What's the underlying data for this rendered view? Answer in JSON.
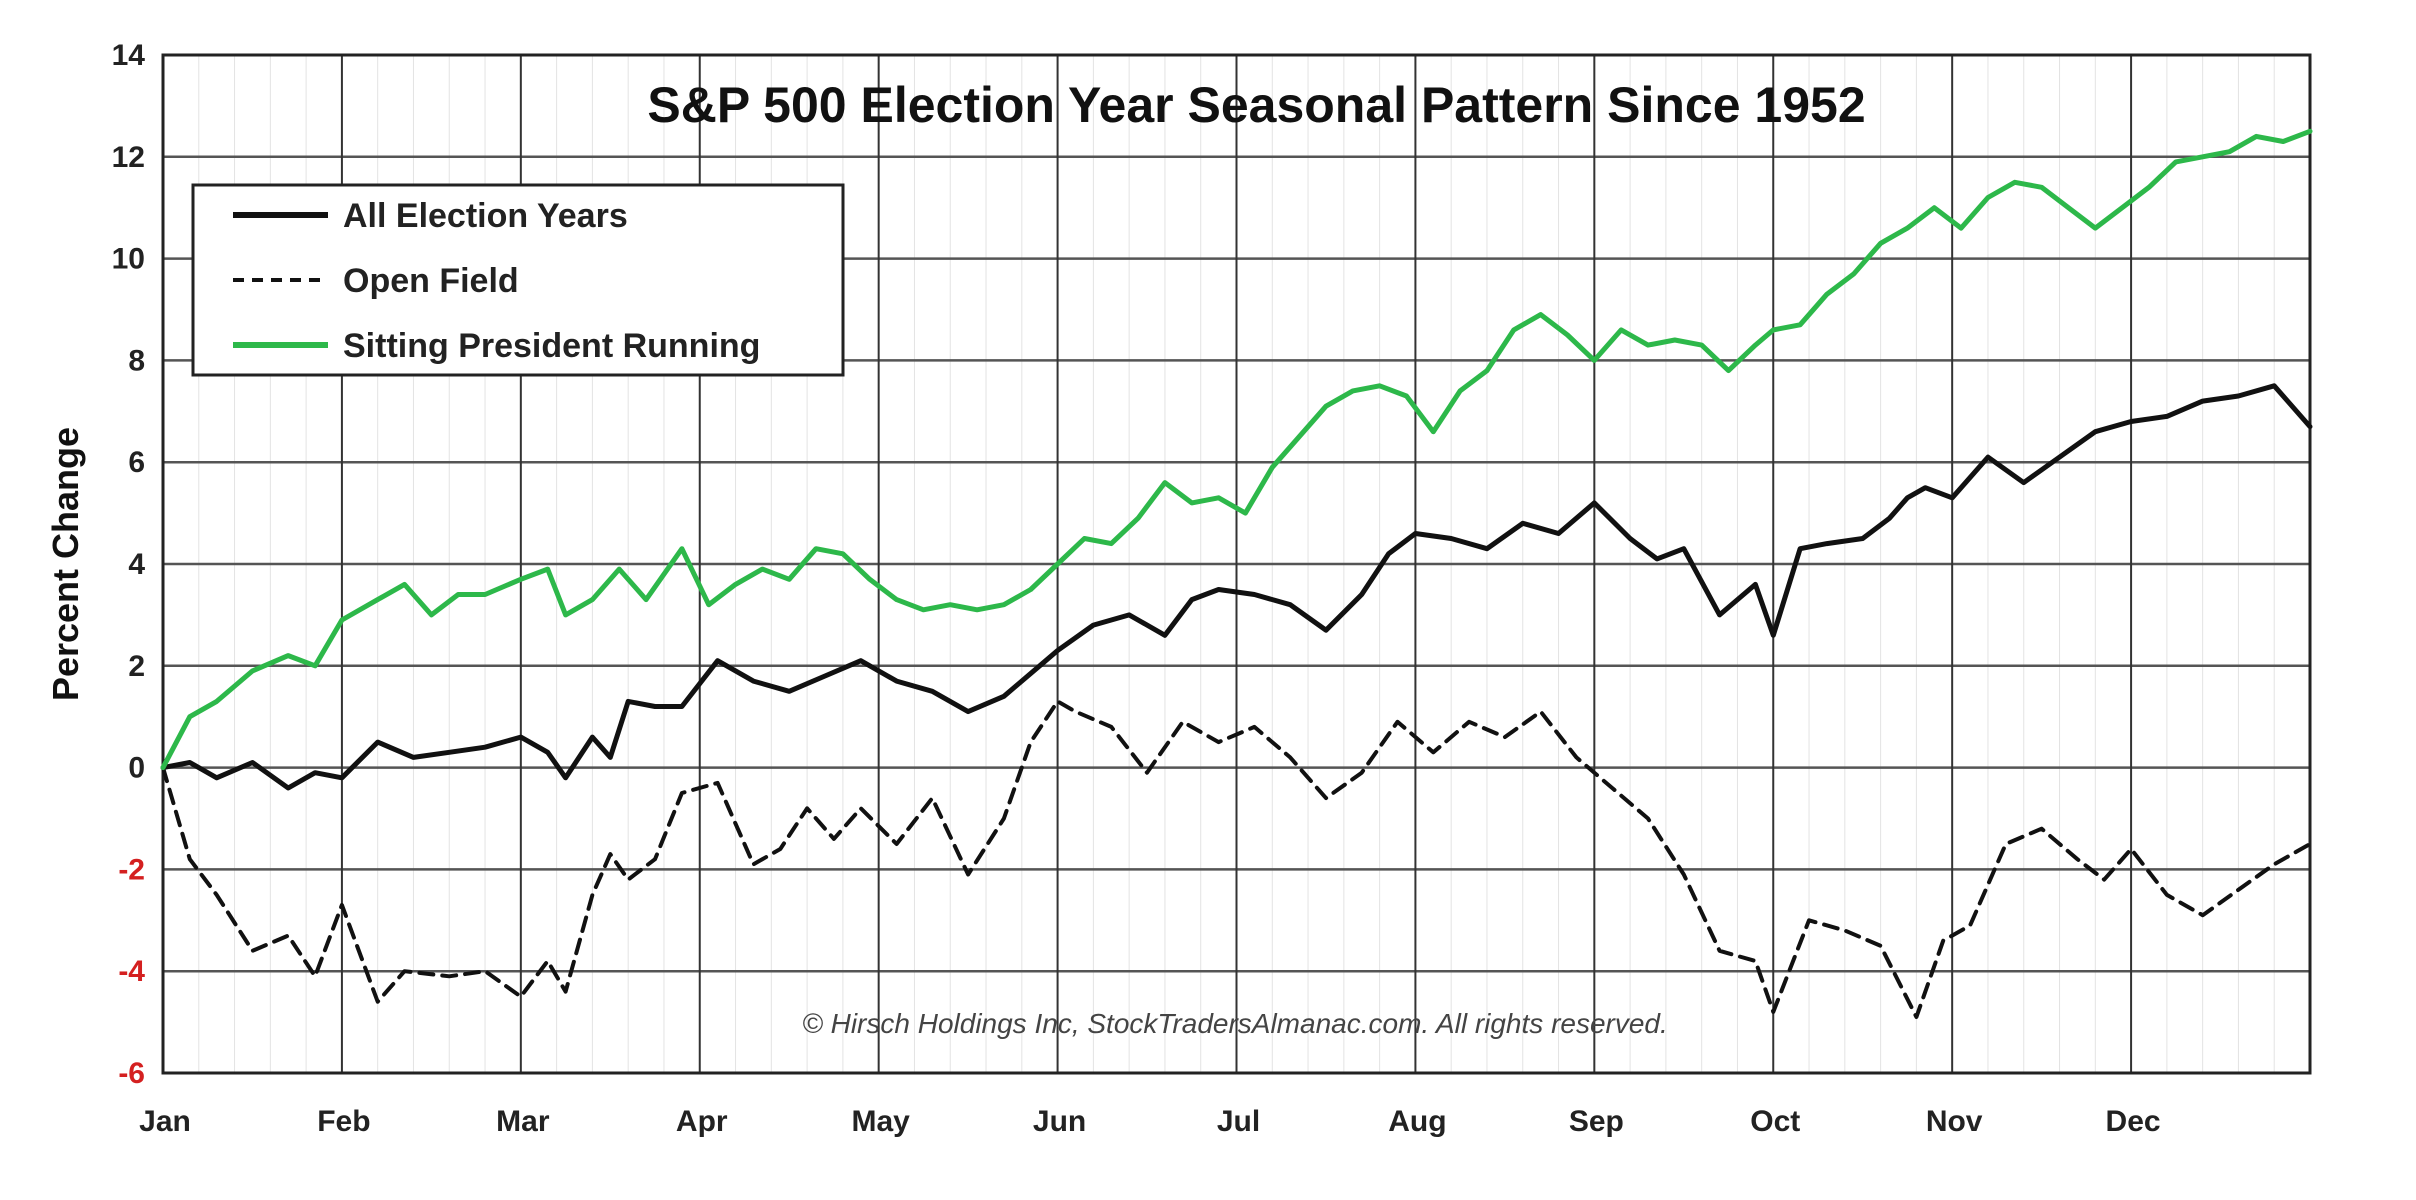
{
  "chart_data": {
    "type": "line",
    "title": "S&P 500 Election Year Seasonal Pattern Since 1952",
    "ylabel": "Percent Change",
    "xlabel": "",
    "months": [
      "Jan",
      "Feb",
      "Mar",
      "Apr",
      "May",
      "Jun",
      "Jul",
      "Aug",
      "Sep",
      "Oct",
      "Nov",
      "Dec"
    ],
    "yticks": [
      "14",
      "12",
      "10",
      "8",
      "6",
      "4",
      "2",
      "0",
      "-2",
      "-4",
      "-6"
    ],
    "ylim": [
      -6,
      14
    ],
    "xlim": [
      0,
      12
    ],
    "grid": true,
    "legend_position": "top-left",
    "credit": "© Hirsch Holdings Inc, StockTradersAlmanac.com. All rights reserved.",
    "series": [
      {
        "name": "All Election Years",
        "color": "#111111",
        "style": "solid",
        "x": [
          0,
          0.15,
          0.3,
          0.5,
          0.7,
          0.85,
          1.0,
          1.2,
          1.4,
          1.6,
          1.8,
          2.0,
          2.15,
          2.25,
          2.4,
          2.5,
          2.6,
          2.75,
          2.9,
          3.1,
          3.3,
          3.5,
          3.7,
          3.9,
          4.1,
          4.3,
          4.5,
          4.7,
          4.9,
          5.0,
          5.2,
          5.4,
          5.6,
          5.75,
          5.9,
          6.1,
          6.3,
          6.5,
          6.7,
          6.85,
          7.0,
          7.2,
          7.4,
          7.6,
          7.8,
          8.0,
          8.2,
          8.35,
          8.5,
          8.7,
          8.9,
          9.0,
          9.15,
          9.3,
          9.5,
          9.65,
          9.75,
          9.85,
          10.0,
          10.2,
          10.4,
          10.6,
          10.8,
          11.0,
          11.2,
          11.4,
          11.6,
          11.8,
          12.0
        ],
        "y": [
          0,
          0.1,
          -0.2,
          0.1,
          -0.4,
          -0.1,
          -0.2,
          0.5,
          0.2,
          0.3,
          0.4,
          0.6,
          0.3,
          -0.2,
          0.6,
          0.2,
          1.3,
          1.2,
          1.2,
          2.1,
          1.7,
          1.5,
          1.8,
          2.1,
          1.7,
          1.5,
          1.1,
          1.4,
          2.0,
          2.3,
          2.8,
          3.0,
          2.6,
          3.3,
          3.5,
          3.4,
          3.2,
          2.7,
          3.4,
          4.2,
          4.6,
          4.5,
          4.3,
          4.8,
          4.6,
          5.2,
          4.5,
          4.1,
          4.3,
          3.0,
          3.6,
          2.6,
          4.3,
          4.4,
          4.5,
          4.9,
          5.3,
          5.5,
          5.3,
          6.1,
          5.6,
          6.1,
          6.6,
          6.8,
          6.9,
          7.2,
          7.3,
          7.5,
          6.7
        ]
      },
      {
        "name": "Open Field",
        "color": "#111111",
        "style": "dashed",
        "x": [
          0,
          0.15,
          0.3,
          0.5,
          0.7,
          0.85,
          1.0,
          1.2,
          1.35,
          1.6,
          1.8,
          2.0,
          2.15,
          2.25,
          2.4,
          2.5,
          2.6,
          2.75,
          2.9,
          3.1,
          3.3,
          3.45,
          3.6,
          3.75,
          3.9,
          4.1,
          4.3,
          4.5,
          4.7,
          4.85,
          5.0,
          5.1,
          5.3,
          5.5,
          5.7,
          5.9,
          6.1,
          6.3,
          6.5,
          6.7,
          6.9,
          7.1,
          7.3,
          7.5,
          7.7,
          7.9,
          8.1,
          8.3,
          8.5,
          8.7,
          8.9,
          9.0,
          9.2,
          9.4,
          9.6,
          9.8,
          9.95,
          10.1,
          10.3,
          10.5,
          10.7,
          10.85,
          11.0,
          11.2,
          11.4,
          11.6,
          11.8,
          12.0
        ],
        "y": [
          0,
          -1.8,
          -2.5,
          -3.6,
          -3.3,
          -4.1,
          -2.7,
          -4.6,
          -4.0,
          -4.1,
          -4.0,
          -4.5,
          -3.8,
          -4.4,
          -2.5,
          -1.7,
          -2.2,
          -1.8,
          -0.5,
          -0.3,
          -1.9,
          -1.6,
          -0.8,
          -1.4,
          -0.8,
          -1.5,
          -0.6,
          -2.1,
          -1.0,
          0.5,
          1.3,
          1.1,
          0.8,
          -0.1,
          0.9,
          0.5,
          0.8,
          0.2,
          -0.6,
          -0.1,
          0.9,
          0.3,
          0.9,
          0.6,
          1.1,
          0.2,
          -0.4,
          -1.0,
          -2.1,
          -3.6,
          -3.8,
          -4.8,
          -3.0,
          -3.2,
          -3.5,
          -4.9,
          -3.4,
          -3.1,
          -1.5,
          -1.2,
          -1.8,
          -2.2,
          -1.6,
          -2.5,
          -2.9,
          -2.4,
          -1.9,
          -1.5
        ]
      },
      {
        "name": "Sitting President Running",
        "color": "#2db84a",
        "style": "solid",
        "x": [
          0,
          0.15,
          0.3,
          0.5,
          0.7,
          0.85,
          1.0,
          1.2,
          1.35,
          1.5,
          1.65,
          1.8,
          2.0,
          2.15,
          2.25,
          2.4,
          2.55,
          2.7,
          2.9,
          3.05,
          3.2,
          3.35,
          3.5,
          3.65,
          3.8,
          3.95,
          4.1,
          4.25,
          4.4,
          4.55,
          4.7,
          4.85,
          5.0,
          5.15,
          5.3,
          5.45,
          5.6,
          5.75,
          5.9,
          6.05,
          6.2,
          6.35,
          6.5,
          6.65,
          6.8,
          6.95,
          7.1,
          7.25,
          7.4,
          7.55,
          7.7,
          7.85,
          8.0,
          8.15,
          8.3,
          8.45,
          8.6,
          8.75,
          8.9,
          9.0,
          9.15,
          9.3,
          9.45,
          9.6,
          9.75,
          9.9,
          10.05,
          10.2,
          10.35,
          10.5,
          10.65,
          10.8,
          10.95,
          11.1,
          11.25,
          11.4,
          11.55,
          11.7,
          11.85,
          12.0
        ],
        "y": [
          0,
          1.0,
          1.3,
          1.9,
          2.2,
          2.0,
          2.9,
          3.3,
          3.6,
          3.0,
          3.4,
          3.4,
          3.7,
          3.9,
          3.0,
          3.3,
          3.9,
          3.3,
          4.3,
          3.2,
          3.6,
          3.9,
          3.7,
          4.3,
          4.2,
          3.7,
          3.3,
          3.1,
          3.2,
          3.1,
          3.2,
          3.5,
          4.0,
          4.5,
          4.4,
          4.9,
          5.6,
          5.2,
          5.3,
          5.0,
          5.9,
          6.5,
          7.1,
          7.4,
          7.5,
          7.3,
          6.6,
          7.4,
          7.8,
          8.6,
          8.9,
          8.5,
          8.0,
          8.6,
          8.3,
          8.4,
          8.3,
          7.8,
          8.3,
          8.6,
          8.7,
          9.3,
          9.7,
          10.3,
          10.6,
          11.0,
          10.6,
          11.2,
          11.5,
          11.4,
          11.0,
          10.6,
          11.0,
          11.4,
          11.9,
          12.0,
          12.1,
          12.4,
          12.3,
          12.5
        ]
      }
    ]
  }
}
